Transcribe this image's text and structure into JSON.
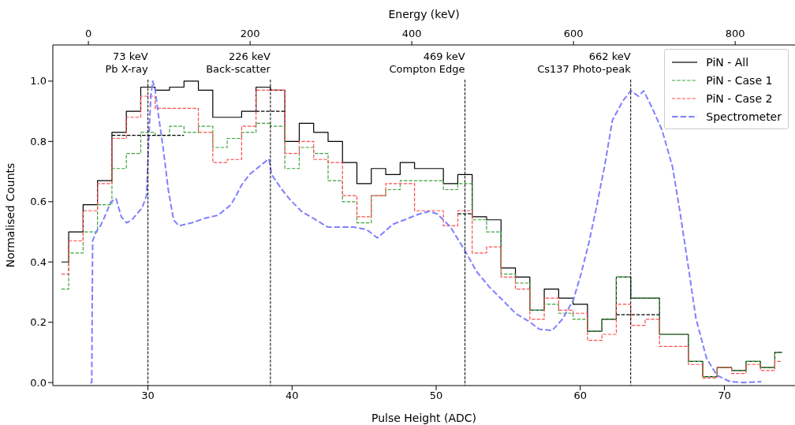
{
  "chart_data": {
    "type": "step",
    "xlabel": "Pulse Height (ADC)",
    "ylabel": "Normalised Counts",
    "x2label": "Energy (keV)",
    "xlim": [
      23.4,
      74.9
    ],
    "xticks": [
      30,
      40,
      50,
      60,
      70
    ],
    "x2lim": [
      -44,
      874
    ],
    "x2ticks": [
      0,
      200,
      400,
      600,
      800
    ],
    "ylim": [
      -0.01,
      1.12
    ],
    "yticks": [
      {
        "value": 0,
        "label": "0.0"
      },
      {
        "value": 0.2,
        "label": "0.2"
      },
      {
        "value": 0.4,
        "label": "0.4"
      },
      {
        "value": 0.6,
        "label": "0.6"
      },
      {
        "value": 0.8,
        "label": "0.8"
      },
      {
        "value": 1.0,
        "label": "1.0"
      }
    ],
    "grid": false,
    "legend": "top right",
    "x": [
      24,
      25,
      26,
      27,
      28,
      29,
      30,
      31,
      32,
      33,
      34,
      35,
      36,
      37,
      38,
      39,
      40,
      41,
      42,
      43,
      44,
      45,
      46,
      47,
      48,
      49,
      50,
      51,
      52,
      53,
      54,
      55,
      56,
      57,
      58,
      59,
      60,
      61,
      62,
      63,
      64,
      65,
      66,
      67,
      68,
      69,
      70,
      71,
      72,
      73,
      74
    ],
    "series": [
      {
        "name": "PiN - All",
        "color": "#000000",
        "line_style": "solid",
        "values": [
          0.4,
          0.5,
          0.59,
          0.67,
          0.83,
          0.9,
          0.98,
          0.97,
          0.98,
          1.0,
          0.97,
          0.88,
          0.88,
          0.9,
          0.98,
          0.97,
          0.8,
          0.86,
          0.83,
          0.8,
          0.73,
          0.66,
          0.71,
          0.69,
          0.73,
          0.71,
          0.71,
          0.66,
          0.69,
          0.55,
          0.54,
          0.38,
          0.35,
          0.24,
          0.31,
          0.28,
          0.26,
          0.17,
          0.21,
          0.35,
          0.28,
          0.28,
          0.16,
          0.16,
          0.07,
          0.02,
          0.05,
          0.04,
          0.07,
          0.05,
          0.1
        ]
      },
      {
        "name": "PiN - Case 1",
        "color": "#3da33d",
        "line_style": "dashed",
        "values": [
          0.31,
          0.43,
          0.5,
          0.59,
          0.71,
          0.76,
          0.83,
          0.82,
          0.85,
          0.83,
          0.85,
          0.78,
          0.81,
          0.83,
          0.86,
          0.85,
          0.71,
          0.78,
          0.76,
          0.67,
          0.6,
          0.53,
          0.62,
          0.64,
          0.67,
          0.67,
          0.67,
          0.64,
          0.66,
          0.54,
          0.5,
          0.36,
          0.33,
          0.24,
          0.26,
          0.23,
          0.21,
          0.17,
          0.21,
          0.35,
          0.28,
          0.28,
          0.16,
          0.16,
          0.07,
          0.02,
          0.05,
          0.04,
          0.07,
          0.05,
          0.1
        ]
      },
      {
        "name": "PiN - Case 2",
        "color": "#ff4d4d",
        "line_style": "dashed",
        "values": [
          0.36,
          0.47,
          0.57,
          0.66,
          0.81,
          0.88,
          0.95,
          0.91,
          0.91,
          0.91,
          0.83,
          0.73,
          0.74,
          0.85,
          0.97,
          0.97,
          0.76,
          0.8,
          0.74,
          0.73,
          0.62,
          0.55,
          0.62,
          0.66,
          0.66,
          0.57,
          0.57,
          0.52,
          0.57,
          0.43,
          0.45,
          0.35,
          0.31,
          0.21,
          0.28,
          0.24,
          0.23,
          0.14,
          0.16,
          0.26,
          0.19,
          0.21,
          0.12,
          0.12,
          0.06,
          0.015,
          0.05,
          0.03,
          0.06,
          0.04,
          0.07
        ]
      },
      {
        "name": "Spectrometer",
        "type": "line",
        "color": "#8080ff",
        "line_style": "dashed",
        "x": [
          26.0,
          26.1,
          26.16,
          26.4,
          26.7,
          27.0,
          27.43,
          27.79,
          28.15,
          28.52,
          28.9,
          29.24,
          29.6,
          29.9,
          30.05,
          30.2,
          30.33,
          30.5,
          30.69,
          31.05,
          31.41,
          31.78,
          32.14,
          33.05,
          33.95,
          34.86,
          35.76,
          36.12,
          36.49,
          37.04,
          37.94,
          38.4,
          38.58,
          39.3,
          39.93,
          40.66,
          41.57,
          42.47,
          43.38,
          44.28,
          45.19,
          45.92,
          47.0,
          47.91,
          48.81,
          49.54,
          50.09,
          50.99,
          51.99,
          52.81,
          53.71,
          54.62,
          55.52,
          56.43,
          57.16,
          58.06,
          58.79,
          59.51,
          60.05,
          60.6,
          61.14,
          61.68,
          62.23,
          62.95,
          63.5,
          64.04,
          64.4,
          64.94,
          65.67,
          66.4,
          66.94,
          67.49,
          68.03,
          68.76,
          69.48,
          70.39,
          71.29,
          72.56
        ],
        "values": [
          0.0,
          0.0,
          0.47,
          0.5,
          0.52,
          0.55,
          0.6,
          0.61,
          0.55,
          0.53,
          0.54,
          0.56,
          0.58,
          0.62,
          0.8,
          0.95,
          1.0,
          0.97,
          0.9,
          0.78,
          0.64,
          0.54,
          0.52,
          0.53,
          0.545,
          0.555,
          0.59,
          0.62,
          0.655,
          0.69,
          0.725,
          0.742,
          0.69,
          0.64,
          0.603,
          0.568,
          0.542,
          0.516,
          0.516,
          0.516,
          0.507,
          0.48,
          0.525,
          0.542,
          0.559,
          0.568,
          0.559,
          0.516,
          0.438,
          0.368,
          0.316,
          0.273,
          0.229,
          0.203,
          0.177,
          0.173,
          0.212,
          0.273,
          0.36,
          0.464,
          0.586,
          0.716,
          0.87,
          0.934,
          0.968,
          0.95,
          0.968,
          0.916,
          0.838,
          0.716,
          0.56,
          0.386,
          0.212,
          0.081,
          0.024,
          0.003,
          0.0,
          0.003
        ]
      },
      {
        "color": "#000000",
        "line_style": "dashed",
        "x": [
          27.5,
          32.5
        ],
        "values": [
          0.82,
          0.82
        ]
      },
      {
        "color": "#000000",
        "line_style": "dashed",
        "x": [
          37.5,
          39.5
        ],
        "values": [
          0.9,
          0.9
        ]
      },
      {
        "color": "#000000",
        "line_style": "dashed",
        "x": [
          51.5,
          52.5
        ],
        "values": [
          0.56,
          0.56
        ]
      },
      {
        "color": "#000000",
        "line_style": "dashed",
        "x": [
          62.5,
          65.5
        ],
        "values": [
          0.225,
          0.225
        ]
      }
    ],
    "ref_lines": [
      {
        "axis": "x",
        "value": 30,
        "label": "73 keV\nPb X-ray",
        "color": "#000000",
        "line_style": "dashed"
      },
      {
        "axis": "x",
        "value": 38.5,
        "label": "226 keV\nBack-scatter",
        "color": "#000000",
        "line_style": "dashed"
      },
      {
        "axis": "x",
        "value": 52,
        "label": "469 keV\nCompton Edge",
        "color": "#000000",
        "line_style": "dashed"
      },
      {
        "axis": "x",
        "value": 63.5,
        "label": "662 keV\nCs137 Photo-peak",
        "color": "#000000",
        "line_style": "dashed"
      }
    ]
  }
}
